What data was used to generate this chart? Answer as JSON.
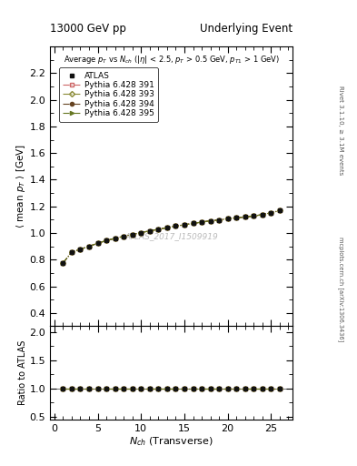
{
  "title_left": "13000 GeV pp",
  "title_right": "Underlying Event",
  "watermark": "ATLAS_2017_I1509919",
  "right_label_top": "Rivet 3.1.10, ≥ 3.1M events",
  "right_label_bottom": "mcplots.cern.ch [arXiv:1306.3436]",
  "ylabel_main": "⟨ mean p_T ⟩ [GeV]",
  "ylabel_ratio": "Ratio to ATLAS",
  "xlabel": "N$_{ch}$ (Transverse)",
  "ylim_main": [
    0.3,
    2.4
  ],
  "ylim_ratio": [
    0.45,
    2.1
  ],
  "yticks_main": [
    0.4,
    0.6,
    0.8,
    1.0,
    1.2,
    1.4,
    1.6,
    1.8,
    2.0,
    2.2
  ],
  "yticks_ratio": [
    0.5,
    1.0,
    1.5,
    2.0
  ],
  "xlim": [
    -0.5,
    27.5
  ],
  "series": {
    "ATLAS": {
      "x": [
        1,
        2,
        3,
        4,
        5,
        6,
        7,
        8,
        9,
        10,
        11,
        12,
        13,
        14,
        15,
        16,
        17,
        18,
        19,
        20,
        21,
        22,
        23,
        24,
        25,
        26
      ],
      "y": [
        0.775,
        0.855,
        0.878,
        0.9,
        0.923,
        0.943,
        0.96,
        0.975,
        0.989,
        1.003,
        1.016,
        1.028,
        1.04,
        1.052,
        1.062,
        1.072,
        1.082,
        1.092,
        1.098,
        1.108,
        1.114,
        1.12,
        1.128,
        1.138,
        1.152,
        1.168
      ],
      "color": "#111111",
      "marker": "s",
      "markersize": 3.5,
      "linestyle": "none",
      "label": "ATLAS"
    },
    "Pythia391": {
      "label": "Pythia 6.428 391",
      "x": [
        1,
        2,
        3,
        4,
        5,
        6,
        7,
        8,
        9,
        10,
        11,
        12,
        13,
        14,
        15,
        16,
        17,
        18,
        19,
        20,
        21,
        22,
        23,
        24,
        25,
        26
      ],
      "y": [
        0.775,
        0.855,
        0.878,
        0.9,
        0.923,
        0.943,
        0.96,
        0.975,
        0.989,
        1.003,
        1.016,
        1.028,
        1.04,
        1.052,
        1.062,
        1.072,
        1.082,
        1.092,
        1.098,
        1.108,
        1.114,
        1.12,
        1.128,
        1.138,
        1.152,
        1.168
      ],
      "color": "#cc6666",
      "marker": "s",
      "markerfacecolor": "none",
      "markersize": 3.5,
      "linestyle": "-.",
      "linewidth": 0.8
    },
    "Pythia393": {
      "label": "Pythia 6.428 393",
      "x": [
        1,
        2,
        3,
        4,
        5,
        6,
        7,
        8,
        9,
        10,
        11,
        12,
        13,
        14,
        15,
        16,
        17,
        18,
        19,
        20,
        21,
        22,
        23,
        24,
        25,
        26
      ],
      "y": [
        0.775,
        0.855,
        0.878,
        0.9,
        0.923,
        0.943,
        0.96,
        0.975,
        0.989,
        1.003,
        1.016,
        1.028,
        1.04,
        1.052,
        1.062,
        1.072,
        1.082,
        1.092,
        1.098,
        1.108,
        1.114,
        1.12,
        1.128,
        1.138,
        1.152,
        1.168
      ],
      "color": "#888833",
      "marker": "D",
      "markerfacecolor": "none",
      "markersize": 3.0,
      "linestyle": "-.",
      "linewidth": 0.8
    },
    "Pythia394": {
      "label": "Pythia 6.428 394",
      "x": [
        1,
        2,
        3,
        4,
        5,
        6,
        7,
        8,
        9,
        10,
        11,
        12,
        13,
        14,
        15,
        16,
        17,
        18,
        19,
        20,
        21,
        22,
        23,
        24,
        25,
        26
      ],
      "y": [
        0.775,
        0.855,
        0.878,
        0.9,
        0.923,
        0.943,
        0.96,
        0.975,
        0.989,
        1.003,
        1.016,
        1.028,
        1.04,
        1.052,
        1.062,
        1.072,
        1.082,
        1.092,
        1.098,
        1.108,
        1.114,
        1.12,
        1.128,
        1.138,
        1.152,
        1.168
      ],
      "color": "#664422",
      "marker": "o",
      "markerfacecolor": "#664422",
      "markersize": 3.0,
      "linestyle": "-.",
      "linewidth": 0.8
    },
    "Pythia395": {
      "label": "Pythia 6.428 395",
      "x": [
        1,
        2,
        3,
        4,
        5,
        6,
        7,
        8,
        9,
        10,
        11,
        12,
        13,
        14,
        15,
        16,
        17,
        18,
        19,
        20,
        21,
        22,
        23,
        24,
        25,
        26
      ],
      "y": [
        0.775,
        0.855,
        0.878,
        0.9,
        0.923,
        0.943,
        0.96,
        0.975,
        0.989,
        1.003,
        1.016,
        1.028,
        1.04,
        1.052,
        1.062,
        1.072,
        1.082,
        1.092,
        1.098,
        1.108,
        1.114,
        1.12,
        1.128,
        1.138,
        1.152,
        1.168
      ],
      "color": "#667722",
      "marker": ">",
      "markerfacecolor": "#667722",
      "markersize": 3.0,
      "linestyle": "-.",
      "linewidth": 0.8
    }
  }
}
